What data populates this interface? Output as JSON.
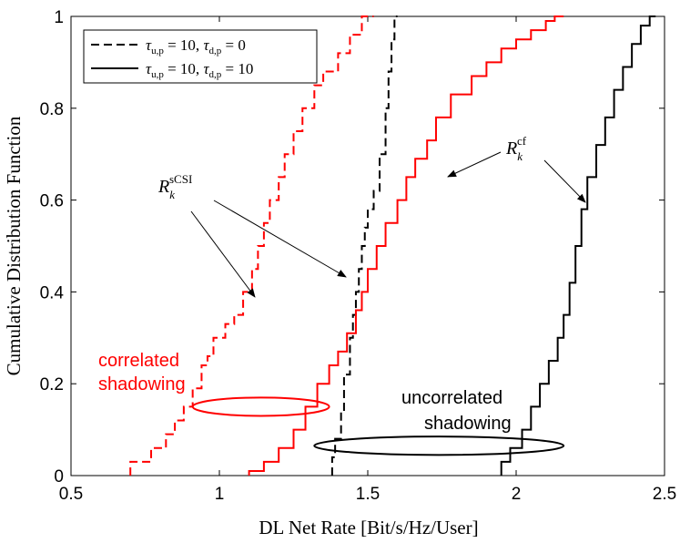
{
  "chart_data": {
    "type": "line",
    "title": "",
    "xlabel": "DL Net Rate [Bit/s/Hz/User]",
    "ylabel": "Cumulative Distribution Function",
    "xlim": [
      0.5,
      2.5
    ],
    "ylim": [
      0,
      1
    ],
    "xticks": [
      "0.5",
      "1",
      "1.5",
      "2",
      "2.5"
    ],
    "yticks": [
      "0",
      "0.2",
      "0.4",
      "0.6",
      "0.8",
      "1"
    ],
    "grid": false,
    "legend_position": "top-left",
    "legend": [
      {
        "label": "τu,p = 10, τd,p = 0",
        "style": "dashed",
        "color": "#000000"
      },
      {
        "label": "τu,p = 10, τd,p = 10",
        "style": "solid",
        "color": "#000000"
      }
    ],
    "series": [
      {
        "name": "R_k^sCSI correlated shadowing",
        "color": "#ff0000",
        "style": "dashed",
        "x": [
          0.7,
          0.77,
          0.82,
          0.85,
          0.88,
          0.91,
          0.94,
          0.96,
          0.98,
          1.02,
          1.05,
          1.08,
          1.11,
          1.13,
          1.15,
          1.17,
          1.2,
          1.22,
          1.25,
          1.28,
          1.32,
          1.35,
          1.4,
          1.44,
          1.48,
          1.52
        ],
        "y": [
          0.0,
          0.03,
          0.06,
          0.09,
          0.12,
          0.15,
          0.19,
          0.24,
          0.26,
          0.3,
          0.33,
          0.35,
          0.4,
          0.45,
          0.5,
          0.55,
          0.6,
          0.65,
          0.7,
          0.75,
          0.8,
          0.85,
          0.88,
          0.92,
          0.96,
          1.0
        ]
      },
      {
        "name": "R_k^sCSI uncorrelated shadowing",
        "color": "#000000",
        "style": "dashed",
        "x": [
          1.38,
          1.39,
          1.41,
          1.42,
          1.44,
          1.45,
          1.46,
          1.47,
          1.48,
          1.49,
          1.5,
          1.52,
          1.54,
          1.56,
          1.57,
          1.58,
          1.59,
          1.6
        ],
        "y": [
          0.0,
          0.04,
          0.08,
          0.14,
          0.22,
          0.3,
          0.35,
          0.4,
          0.45,
          0.5,
          0.54,
          0.58,
          0.62,
          0.7,
          0.8,
          0.88,
          0.95,
          1.0
        ]
      },
      {
        "name": "R_k^cf correlated shadowing",
        "color": "#ff0000",
        "style": "solid",
        "x": [
          1.1,
          1.15,
          1.2,
          1.25,
          1.29,
          1.33,
          1.37,
          1.4,
          1.43,
          1.46,
          1.48,
          1.5,
          1.53,
          1.56,
          1.6,
          1.63,
          1.66,
          1.7,
          1.73,
          1.78,
          1.85,
          1.9,
          1.95,
          2.0,
          2.05,
          2.1,
          2.13,
          2.16
        ],
        "y": [
          0.0,
          0.01,
          0.03,
          0.06,
          0.1,
          0.15,
          0.2,
          0.24,
          0.27,
          0.31,
          0.36,
          0.4,
          0.45,
          0.5,
          0.55,
          0.6,
          0.65,
          0.69,
          0.73,
          0.78,
          0.83,
          0.87,
          0.9,
          0.93,
          0.95,
          0.97,
          0.99,
          1.0
        ]
      },
      {
        "name": "R_k^cf uncorrelated shadowing",
        "color": "#000000",
        "style": "solid",
        "x": [
          1.95,
          1.98,
          2.02,
          2.05,
          2.08,
          2.11,
          2.14,
          2.16,
          2.18,
          2.2,
          2.22,
          2.24,
          2.27,
          2.3,
          2.33,
          2.36,
          2.39,
          2.42,
          2.45,
          2.47
        ],
        "y": [
          0.0,
          0.03,
          0.06,
          0.1,
          0.15,
          0.2,
          0.25,
          0.3,
          0.35,
          0.42,
          0.5,
          0.58,
          0.65,
          0.72,
          0.78,
          0.84,
          0.89,
          0.94,
          0.98,
          1.0
        ]
      }
    ],
    "annotations": [
      {
        "text": "correlated shadowing",
        "lines": [
          "correlated",
          "shadowing"
        ],
        "color": "#ff0000"
      },
      {
        "text": "uncorrelated shadowing",
        "lines": [
          "uncorrelated",
          "shadowing"
        ],
        "color": "#000000"
      },
      {
        "label": "R_k^sCSI",
        "base": "R",
        "sub": "k",
        "sup": "sCSI"
      },
      {
        "label": "R_k^cf",
        "base": "R",
        "sub": "k",
        "sup": "cf"
      }
    ],
    "ellipses": [
      {
        "name": "correlated-ellipse",
        "color": "#ff0000",
        "cx": 1.14,
        "cy": 0.15,
        "rx": 0.23,
        "ry": 0.02
      },
      {
        "name": "uncorrelated-ellipse",
        "color": "#000000",
        "cx": 1.74,
        "cy": 0.065,
        "rx": 0.42,
        "ry": 0.02
      }
    ]
  }
}
